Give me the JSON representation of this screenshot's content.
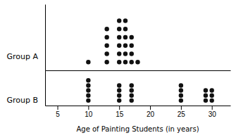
{
  "chart_data": [
    {
      "type": "dot",
      "series": [
        {
          "name": "Group A",
          "color": "#111111",
          "x": [
            10,
            13,
            15,
            16,
            17,
            18
          ],
          "values": [
            1,
            5,
            6,
            6,
            4,
            1
          ]
        }
      ],
      "xlim": [
        3,
        33
      ],
      "ylim": [
        0,
        8
      ],
      "tick_labels": false
    },
    {
      "type": "dot",
      "series": [
        {
          "name": "Group B",
          "color": "#111111",
          "x": [
            10,
            15,
            17,
            25,
            29,
            30
          ],
          "values": [
            5,
            4,
            4,
            4,
            3,
            3
          ]
        }
      ],
      "xlim": [
        3,
        33
      ],
      "ylim": [
        0,
        7
      ],
      "xticks": [
        5,
        10,
        15,
        20,
        25,
        30
      ],
      "xlabel": "Age of Painting Students (in years)",
      "tick_labels": "x"
    }
  ]
}
